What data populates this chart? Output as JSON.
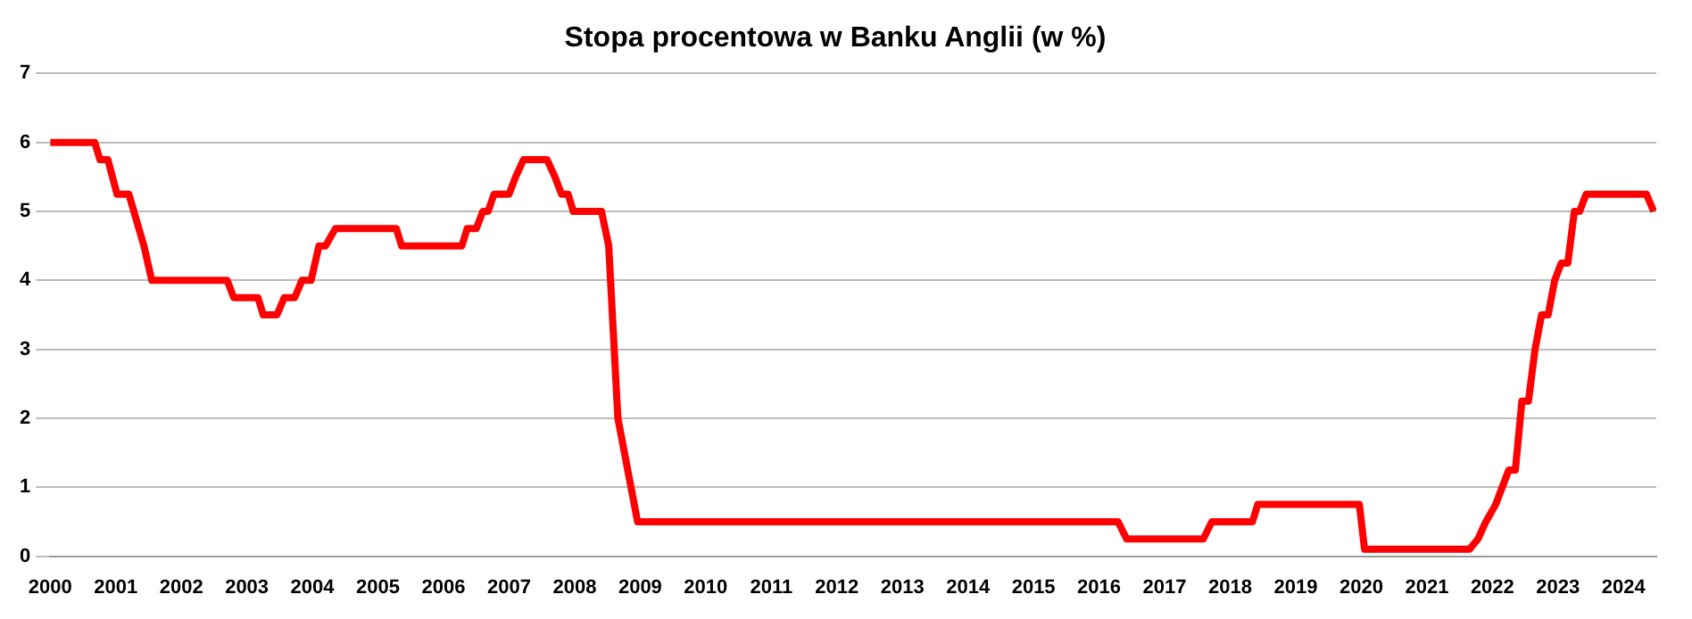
{
  "chart_data": {
    "type": "line",
    "title": "Stopa procentowa w Banku Anglii (w %)",
    "x": [
      2000,
      2000.68,
      2000.76,
      2000.88,
      2000.95,
      2001.02,
      2001.2,
      2001.43,
      2001.55,
      2002.7,
      2002.8,
      2003.17,
      2003.25,
      2003.46,
      2003.57,
      2003.73,
      2003.84,
      2003.98,
      2004.1,
      2004.2,
      2004.35,
      2005.28,
      2005.36,
      2006.28,
      2006.36,
      2006.5,
      2006.6,
      2006.68,
      2006.77,
      2007.0,
      2007.1,
      2007.22,
      2007.58,
      2007.7,
      2007.8,
      2007.9,
      2007.98,
      2008.41,
      2008.52,
      2008.66,
      2008.96,
      2016.29,
      2016.42,
      2017.59,
      2017.72,
      2018.34,
      2018.42,
      2019.97,
      2020.05,
      2021.65,
      2021.78,
      2021.9,
      2022.05,
      2022.15,
      2022.25,
      2022.35,
      2022.45,
      2022.55,
      2022.65,
      2022.75,
      2022.85,
      2022.95,
      2023.05,
      2023.15,
      2023.25,
      2023.33,
      2023.43,
      2024.35,
      2024.46
    ],
    "values": [
      6,
      6,
      5.75,
      5.75,
      5.5,
      5.25,
      5.25,
      4.5,
      4,
      4,
      3.75,
      3.75,
      3.5,
      3.5,
      3.75,
      3.75,
      4,
      4,
      4.5,
      4.5,
      4.75,
      4.75,
      4.5,
      4.5,
      4.75,
      4.75,
      5,
      5,
      5.25,
      5.25,
      5.5,
      5.75,
      5.75,
      5.5,
      5.25,
      5.25,
      5,
      5,
      4.5,
      2,
      0.5,
      0.5,
      0.25,
      0.25,
      0.5,
      0.5,
      0.75,
      0.75,
      0.1,
      0.1,
      0.25,
      0.5,
      0.75,
      1,
      1.25,
      1.25,
      2.25,
      2.25,
      3,
      3.5,
      3.5,
      4,
      4.25,
      4.25,
      5,
      5,
      5.25,
      5.25,
      5
    ],
    "color": "#ff0000",
    "xlim": [
      2000,
      2024.5
    ],
    "xticks": [
      2000,
      2001,
      2002,
      2003,
      2004,
      2005,
      2006,
      2007,
      2008,
      2009,
      2010,
      2011,
      2012,
      2013,
      2014,
      2015,
      2016,
      2017,
      2018,
      2019,
      2020,
      2021,
      2022,
      2023,
      2024
    ],
    "ylim": [
      0,
      7
    ],
    "yticks": [
      0,
      1,
      2,
      3,
      4,
      5,
      6,
      7
    ],
    "grid": "y",
    "legend": false,
    "marker": "none",
    "line_style": "solid"
  }
}
